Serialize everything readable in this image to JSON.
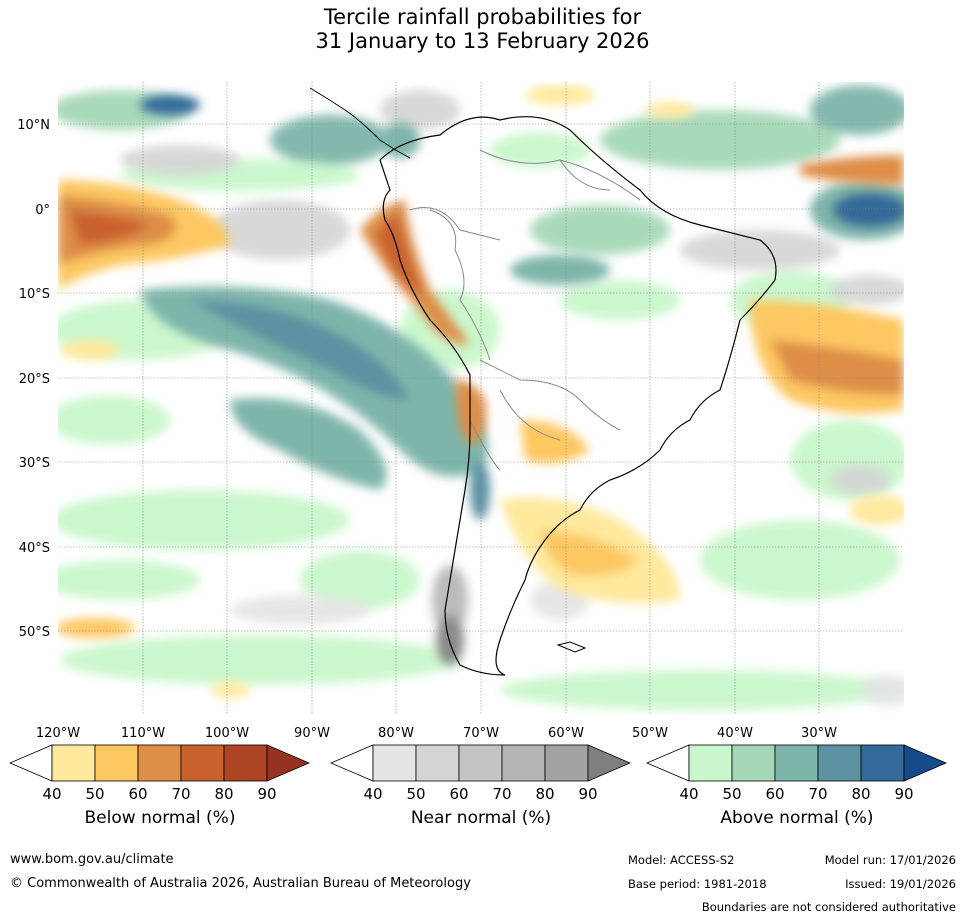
{
  "title_line1": "Tercile rainfall probabilities for",
  "title_line2": "31 January to 13 February 2026",
  "lat_labels": [
    "10°N",
    "0°",
    "10°S",
    "20°S",
    "30°S",
    "40°S",
    "50°S"
  ],
  "lon_labels": [
    "120°W",
    "110°W",
    "100°W",
    "90°W",
    "80°W",
    "70°W",
    "60°W",
    "50°W",
    "40°W",
    "30°W"
  ],
  "colorbars": [
    {
      "title": "Below normal (%)",
      "ticks": [
        "40",
        "50",
        "60",
        "70",
        "80",
        "90"
      ],
      "colors": [
        "#ffffff",
        "#fee99d",
        "#fdc862",
        "#de8e47",
        "#c9612f",
        "#ad4424",
        "#953320"
      ]
    },
    {
      "title": "Near normal (%)",
      "ticks": [
        "40",
        "50",
        "60",
        "70",
        "80",
        "90"
      ],
      "colors": [
        "#ffffff",
        "#e4e4e4",
        "#d4d4d4",
        "#c4c4c4",
        "#b4b4b4",
        "#a3a3a3",
        "#7f7f7f"
      ]
    },
    {
      "title": "Above normal (%)",
      "ticks": [
        "40",
        "50",
        "60",
        "70",
        "80",
        "90"
      ],
      "colors": [
        "#ffffff",
        "#c9f7cb",
        "#a5d8b8",
        "#7eb5aa",
        "#5c92a2",
        "#346a99",
        "#174a88"
      ]
    }
  ],
  "footer": {
    "url": "www.bom.gov.au/climate",
    "copyright": "© Commonwealth of Australia 2026, Australian Bureau of Meteorology",
    "model": "Model: ACCESS-S2",
    "model_run": "Model run: 17/01/2026",
    "base_period": "Base period: 1981-2018",
    "issued": "Issued: 19/01/2026",
    "disclaimer": "Boundaries are not considered authoritative"
  }
}
